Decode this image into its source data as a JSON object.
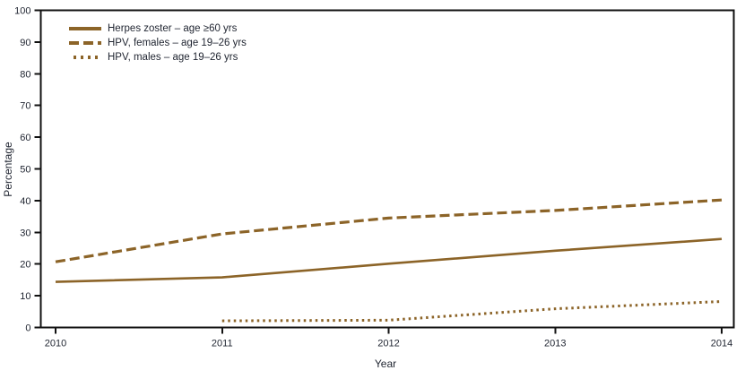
{
  "figure": {
    "background": "#ffffff",
    "series_color": "#8c6428",
    "axis_color": "#111111",
    "text_color": "#1f2430"
  },
  "chart_data": {
    "type": "line",
    "title": "",
    "xlabel": "Year",
    "ylabel": "Percentage",
    "x": [
      2010,
      2011,
      2012,
      2013,
      2014
    ],
    "x_tick_labels": [
      "2010",
      "2011",
      "2012",
      "2013",
      "2014"
    ],
    "xlim": [
      2010,
      2014
    ],
    "ylim": [
      0,
      100
    ],
    "y_ticks": [
      0,
      10,
      20,
      30,
      40,
      50,
      60,
      70,
      80,
      90,
      100
    ],
    "grid": false,
    "legend_position": "inside-top-left",
    "series": [
      {
        "name": "Herpes zoster – age ≥60 yrs",
        "style": "solid",
        "values": [
          14.4,
          15.8,
          20.1,
          24.2,
          27.9
        ]
      },
      {
        "name": "HPV, females – age 19–26 yrs",
        "style": "dashed",
        "values": [
          20.7,
          29.5,
          34.5,
          36.9,
          40.2
        ]
      },
      {
        "name": "HPV, males – age 19–26 yrs",
        "style": "dotted",
        "values": [
          null,
          2.1,
          2.3,
          5.9,
          8.2
        ]
      }
    ]
  }
}
